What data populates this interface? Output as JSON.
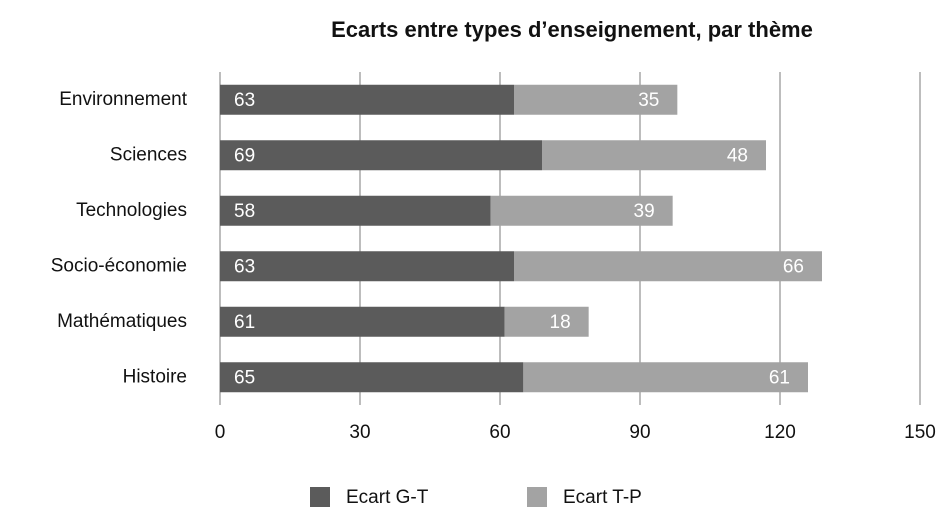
{
  "chart_data": {
    "type": "bar",
    "orientation": "horizontal",
    "stacked": true,
    "title": "Ecarts entre types d’enseignement, par thème",
    "categories": [
      "Environnement",
      "Sciences",
      "Technologies",
      "Socio-économie",
      "Mathématiques",
      "Histoire"
    ],
    "series": [
      {
        "name": "Ecart G-T",
        "color": "#5b5b5b",
        "values": [
          63,
          69,
          58,
          63,
          61,
          65
        ]
      },
      {
        "name": "Ecart T-P",
        "color": "#a3a3a3",
        "values": [
          35,
          48,
          39,
          66,
          18,
          61
        ]
      }
    ],
    "xlim": [
      0,
      150
    ],
    "xticks": [
      0,
      30,
      60,
      90,
      120,
      150
    ],
    "grid": true,
    "legend": "bottom"
  }
}
